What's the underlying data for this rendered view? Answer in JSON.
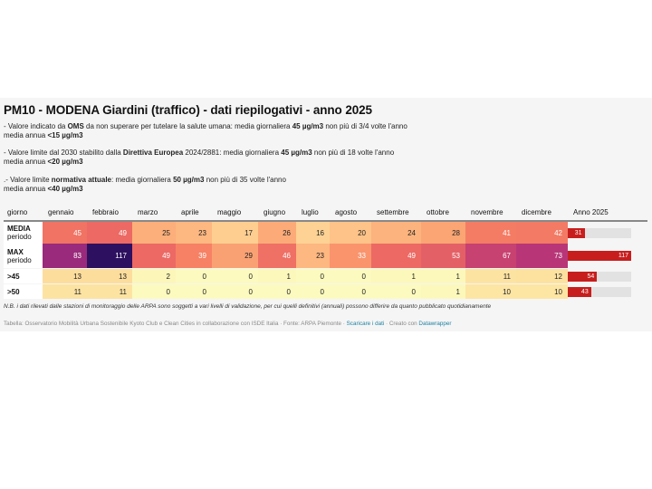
{
  "title": "PM10 - MODENA Giardini (traffico) - dati riepilogativi - anno 2025",
  "descriptions": [
    {
      "line1": [
        {
          "t": "- Valore indicato da ",
          "b": false
        },
        {
          "t": "OMS",
          "b": true
        },
        {
          "t": " da non superare per tutelare la salute umana: media giornaliera ",
          "b": false
        },
        {
          "t": "45 µg/m3",
          "b": true
        },
        {
          "t": " non più di 3/4 volte l'anno",
          "b": false
        }
      ],
      "line2": [
        {
          "t": "media annua ",
          "b": false
        },
        {
          "t": "<15 µg/m3",
          "b": true
        }
      ]
    },
    {
      "line1": [
        {
          "t": "- Valore limite dal 2030 stabilito dalla ",
          "b": false
        },
        {
          "t": "Direttiva Europea",
          "b": true
        },
        {
          "t": " 2024/2881: media giornaliera ",
          "b": false
        },
        {
          "t": "45 µg/m3",
          "b": true
        },
        {
          "t": " non più di 18 volte l'anno",
          "b": false
        }
      ],
      "line2": [
        {
          "t": "media annua ",
          "b": false
        },
        {
          "t": "<20 µg/m3",
          "b": true
        }
      ]
    },
    {
      "line1": [
        {
          "t": ".- Valore limite ",
          "b": false
        },
        {
          "t": "normativa attuale",
          "b": true
        },
        {
          "t": ": media giornaliera ",
          "b": false
        },
        {
          "t": "50 µg/m3",
          "b": true
        },
        {
          "t": " non più di 35 volte l'anno",
          "b": false
        }
      ],
      "line2": [
        {
          "t": "media annua ",
          "b": false
        },
        {
          "t": "<40 µg/m3",
          "b": true
        }
      ]
    }
  ],
  "note": "N.B. i dati rilevati dalle stazioni di monitoraggio delle ARPA sono soggetti a vari livelli di validazione, per cui quelli definitivi (annuali) possono differire da quanto pubblicato quotidianamente",
  "footer": {
    "prefix": "Tabella: Osservatorio Mobilità Urbana Sostenibile Kyoto Club e Clean Cities in collaborazione con ISDE Italia · Fonte: ARPA Piemonte · ",
    "download_link": "Scaricare i dati",
    "middle": " · Creato con ",
    "tool_link": "Datawrapper"
  },
  "chart_data": {
    "type": "heatmap",
    "title": "PM10 - MODENA Giardini (traffico) - dati riepilogativi - anno 2025",
    "row_header_label": "giorno",
    "columns": [
      "gennaio",
      "febbraio",
      "marzo",
      "aprile",
      "maggio",
      "giugno",
      "luglio",
      "agosto",
      "settembre",
      "ottobre",
      "novembre",
      "dicembre"
    ],
    "total_column_label": "Anno 2025",
    "rows": [
      {
        "label": "MEDIA",
        "sublabel": "periodo",
        "values": [
          45,
          49,
          25,
          23,
          17,
          26,
          16,
          20,
          24,
          28,
          41,
          42
        ],
        "annual": 31
      },
      {
        "label": "MAX",
        "sublabel": "periodo",
        "values": [
          83,
          117,
          49,
          39,
          29,
          46,
          23,
          33,
          49,
          53,
          67,
          73
        ],
        "annual": 117
      },
      {
        "label": ">45",
        "sublabel": "",
        "values": [
          13,
          13,
          2,
          0,
          0,
          1,
          0,
          0,
          1,
          1,
          11,
          12
        ],
        "annual": 54
      },
      {
        "label": ">50",
        "sublabel": "",
        "values": [
          11,
          11,
          0,
          0,
          0,
          0,
          0,
          0,
          0,
          1,
          10,
          10
        ],
        "annual": 43
      }
    ],
    "annual_bar_max": 117,
    "colors": {
      "bar_fill": "#c71e1d",
      "bar_track": "#e2e2e2"
    }
  }
}
